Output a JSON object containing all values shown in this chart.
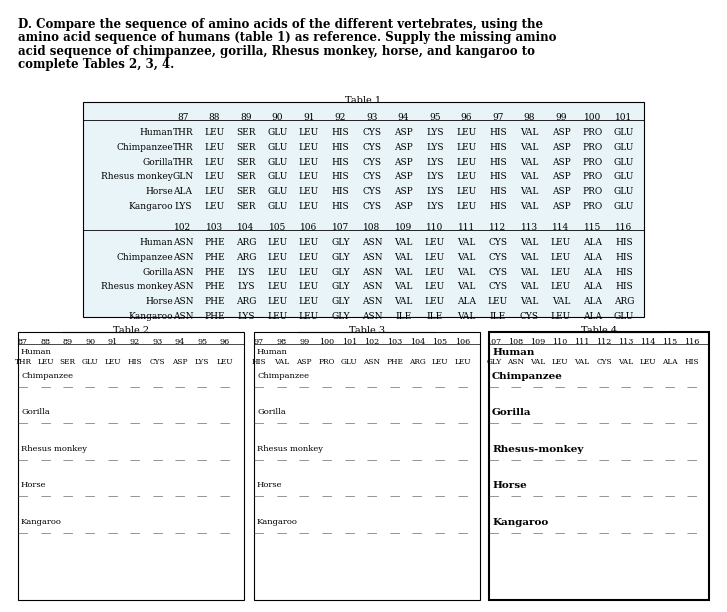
{
  "title_lines": [
    "D. Compare the sequence of amino acids of the different vertebrates, using the",
    "amino acid sequence of humans (table 1) as reference. Supply the missing amino",
    "acid sequence of chimpanzee, gorilla, Rhesus monkey, horse, and kangaroo to",
    "complete Tables 2, 3, 4."
  ],
  "table1_title": "Table 1",
  "table1_cols1": [
    "87",
    "88",
    "89",
    "90",
    "91",
    "92",
    "93",
    "94",
    "95",
    "96",
    "97",
    "98",
    "99",
    "100",
    "101"
  ],
  "table1_rows1_order": [
    "Human",
    "Chimpanzee",
    "Gorilla",
    "Rhesus monkey",
    "Horse",
    "Kangaroo"
  ],
  "table1_rows1": {
    "Human": [
      "THR",
      "LEU",
      "SER",
      "GLU",
      "LEU",
      "HIS",
      "CYS",
      "ASP",
      "LYS",
      "LEU",
      "HIS",
      "VAL",
      "ASP",
      "PRO",
      "GLU"
    ],
    "Chimpanzee": [
      "THR",
      "LEU",
      "SER",
      "GLU",
      "LEU",
      "HIS",
      "CYS",
      "ASP",
      "LYS",
      "LEU",
      "HIS",
      "VAL",
      "ASP",
      "PRO",
      "GLU"
    ],
    "Gorilla": [
      "THR",
      "LEU",
      "SER",
      "GLU",
      "LEU",
      "HIS",
      "CYS",
      "ASP",
      "LYS",
      "LEU",
      "HIS",
      "VAL",
      "ASP",
      "PRO",
      "GLU"
    ],
    "Rhesus monkey": [
      "GLN",
      "LEU",
      "SER",
      "GLU",
      "LEU",
      "HIS",
      "CYS",
      "ASP",
      "LYS",
      "LEU",
      "HIS",
      "VAL",
      "ASP",
      "PRO",
      "GLU"
    ],
    "Horse": [
      "ALA",
      "LEU",
      "SER",
      "GLU",
      "LEU",
      "HIS",
      "CYS",
      "ASP",
      "LYS",
      "LEU",
      "HIS",
      "VAL",
      "ASP",
      "PRO",
      "GLU"
    ],
    "Kangaroo": [
      "LYS",
      "LEU",
      "SER",
      "GLU",
      "LEU",
      "HIS",
      "CYS",
      "ASP",
      "LYS",
      "LEU",
      "HIS",
      "VAL",
      "ASP",
      "PRO",
      "GLU"
    ]
  },
  "table1_cols2": [
    "102",
    "103",
    "104",
    "105",
    "106",
    "107",
    "108",
    "109",
    "110",
    "111",
    "112",
    "113",
    "114",
    "115",
    "116"
  ],
  "table1_rows2": {
    "Human": [
      "ASN",
      "PHE",
      "ARG",
      "LEU",
      "LEU",
      "GLY",
      "ASN",
      "VAL",
      "LEU",
      "VAL",
      "CYS",
      "VAL",
      "LEU",
      "ALA",
      "HIS"
    ],
    "Chimpanzee": [
      "ASN",
      "PHE",
      "ARG",
      "LEU",
      "LEU",
      "GLY",
      "ASN",
      "VAL",
      "LEU",
      "VAL",
      "CYS",
      "VAL",
      "LEU",
      "ALA",
      "HIS"
    ],
    "Gorilla": [
      "ASN",
      "PHE",
      "LYS",
      "LEU",
      "LEU",
      "GLY",
      "ASN",
      "VAL",
      "LEU",
      "VAL",
      "CYS",
      "VAL",
      "LEU",
      "ALA",
      "HIS"
    ],
    "Rhesus monkey": [
      "ASN",
      "PHE",
      "LYS",
      "LEU",
      "LEU",
      "GLY",
      "ASN",
      "VAL",
      "LEU",
      "VAL",
      "CYS",
      "VAL",
      "LEU",
      "ALA",
      "HIS"
    ],
    "Horse": [
      "ASN",
      "PHE",
      "ARG",
      "LEU",
      "LEU",
      "GLY",
      "ASN",
      "VAL",
      "LEU",
      "ALA",
      "LEU",
      "VAL",
      "VAL",
      "ALA",
      "ARG"
    ],
    "Kangaroo": [
      "ASN",
      "PHE",
      "LYS",
      "LEU",
      "LEU",
      "GLY",
      "ASN",
      "ILE",
      "ILE",
      "VAL",
      "ILE",
      "CYS",
      "LEU",
      "ALA",
      "GLU"
    ]
  },
  "table2_title": "Table 2",
  "table2_cols": [
    "87",
    "88",
    "89",
    "90",
    "91",
    "92",
    "93",
    "94",
    "95",
    "96"
  ],
  "table2_human": [
    "THR",
    "LEU",
    "SER",
    "GLU",
    "LEU",
    "HIS",
    "CYS",
    "ASP",
    "LYS",
    "LEU"
  ],
  "table3_title": "Table 3",
  "table3_cols": [
    "97",
    "98",
    "99",
    "100",
    "101",
    "102",
    "103",
    "104",
    "105",
    "106"
  ],
  "table3_human": [
    "HIS",
    "VAL",
    "ASP",
    "PRO",
    "GLU",
    "ASN",
    "PHE",
    "ARG",
    "LEU",
    "LEU"
  ],
  "table4_title": "Table 4",
  "table4_cols": [
    "107",
    "108",
    "109",
    "110",
    "111",
    "112",
    "113",
    "114",
    "115",
    "116"
  ],
  "table4_human": [
    "GLY",
    "ASN",
    "VAL",
    "LEU",
    "VAL",
    "CYS",
    "VAL",
    "LEU",
    "ALA",
    "HIS"
  ],
  "organisms": [
    "Chimpanzee",
    "Gorilla",
    "Rhesus monkey",
    "Horse",
    "Kangaroo"
  ],
  "organisms4": [
    "Chimpanzee",
    "Gorilla",
    "Rhesus-monkey",
    "Horse",
    "Kangaroo"
  ]
}
